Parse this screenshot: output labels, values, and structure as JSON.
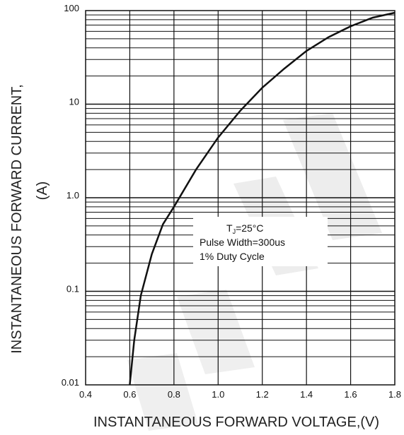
{
  "chart_data": {
    "type": "line",
    "title": "",
    "ylabel_line1": "INSTANTANEOUS FORWARD CURRENT,",
    "ylabel_line2": "(A)",
    "xlabel": "INSTANTANEOUS FORWARD VOLTAGE,(V)",
    "xlim": [
      0.4,
      1.8
    ],
    "ylim": [
      0.01,
      100
    ],
    "yscale": "log",
    "grid": true,
    "x_ticks": [
      "0.4",
      "0.6",
      "0.8",
      "1.0",
      "1.2",
      "1.4",
      "1.6",
      "1.8"
    ],
    "y_ticks": [
      "0.01",
      "0.1",
      "1.0",
      "10",
      "100"
    ],
    "series": [
      {
        "x": [
          0.6,
          0.62,
          0.65,
          0.7,
          0.75,
          0.8,
          0.9,
          1.0,
          1.1,
          1.2,
          1.3,
          1.4,
          1.5,
          1.6,
          1.7,
          1.8
        ],
        "y": [
          0.01,
          0.03,
          0.09,
          0.25,
          0.52,
          0.8,
          2.0,
          4.4,
          8.5,
          15,
          24,
          37,
          52,
          68,
          84,
          95
        ]
      }
    ],
    "annotation": {
      "line1_main": "T",
      "line1_sub": "J",
      "line1_rest": "=25°C",
      "line2": "Pulse Width=300us",
      "line3": "1% Duty Cycle"
    },
    "watermark_color": "#e6e6e6",
    "line_color": "#111111"
  }
}
